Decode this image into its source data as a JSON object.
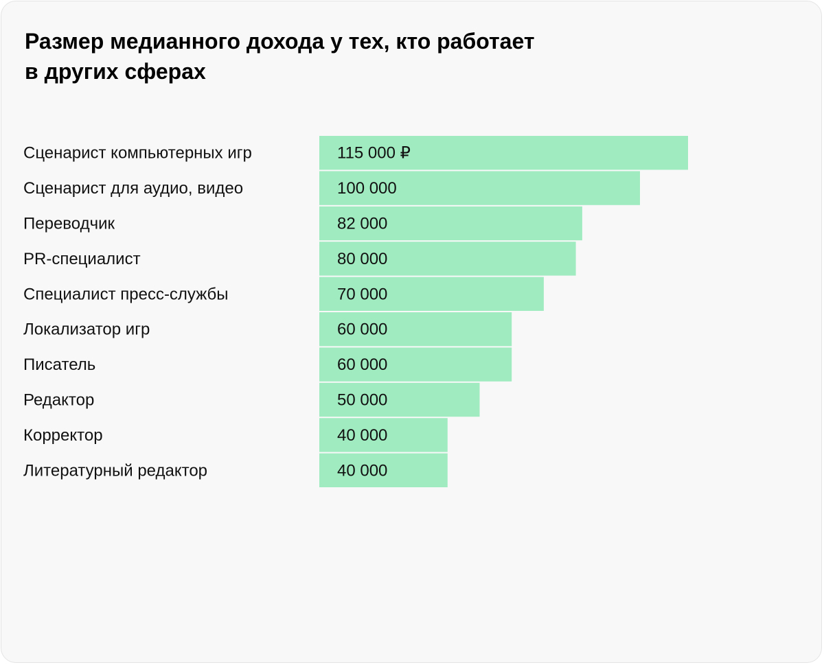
{
  "title_lines": [
    "Размер медианного дохода у тех, кто работает",
    "в других сферах"
  ],
  "colors": {
    "background": "#f8f8f8",
    "bar": "#a0ebc0",
    "text": "#111111"
  },
  "chart_data": {
    "type": "bar",
    "orientation": "horizontal",
    "title": "Размер медианного дохода у тех, кто работает в других сферах",
    "categories": [
      "Сценарист компьютерных игр",
      "Сценарист для аудио, видео",
      "Переводчик",
      "PR-специалист",
      "Специалист пресс-службы",
      "Локализатор игр",
      "Писатель",
      "Редактор",
      "Корректор",
      "Литературный редактор"
    ],
    "values": [
      115000,
      100000,
      82000,
      80000,
      70000,
      60000,
      60000,
      50000,
      40000,
      40000
    ],
    "value_labels": [
      "115 000 ₽",
      "100 000",
      "82 000",
      "80 000",
      "70 000",
      "60 000",
      "60 000",
      "50 000",
      "40 000",
      "40 000"
    ],
    "unit": "₽",
    "xlim": [
      0,
      115000
    ],
    "grid": false,
    "legend": "none"
  }
}
